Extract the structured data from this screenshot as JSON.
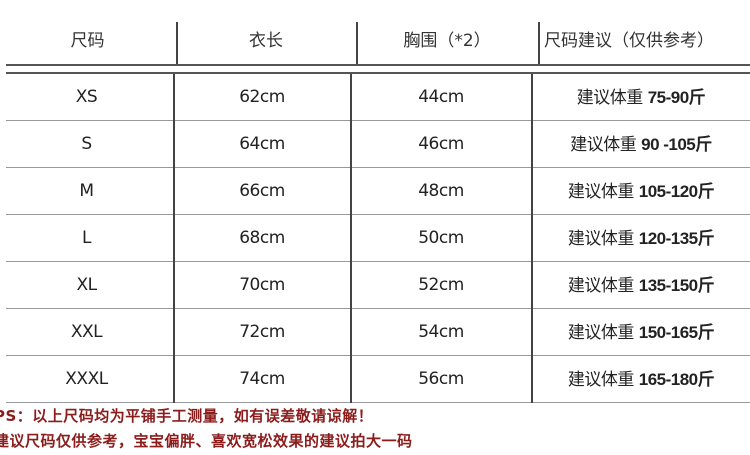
{
  "headers": [
    "尺码",
    "衣长",
    "胸围（*2）",
    "尺码建议（仅供参考）"
  ],
  "rows": [
    {
      "size": "XS",
      "length": "62cm",
      "chest": "44cm",
      "rec_prefix": "建议体重",
      "rec_value": "75-90斤"
    },
    {
      "size": "S",
      "length": "64cm",
      "chest": "46cm",
      "rec_prefix": "建议体重",
      "rec_value": "90 -105斤"
    },
    {
      "size": "M",
      "length": "66cm",
      "chest": "48cm",
      "rec_prefix": "建议体重",
      "rec_value": "105-120斤"
    },
    {
      "size": "L",
      "length": "68cm",
      "chest": "50cm",
      "rec_prefix": "建议体重",
      "rec_value": "120-135斤"
    },
    {
      "size": "XL",
      "length": "70cm",
      "chest": "52cm",
      "rec_prefix": "建议体重",
      "rec_value": "135-150斤"
    },
    {
      "size": "XXL",
      "length": "72cm",
      "chest": "54cm",
      "rec_prefix": "建议体重",
      "rec_value": "150-165斤"
    },
    {
      "size": "XXXL",
      "length": "74cm",
      "chest": "56cm",
      "rec_prefix": "建议体重",
      "rec_value": "165-180斤"
    }
  ],
  "notes": [
    "PS：以上尺码均为平铺手工测量，如有误差敬请谅解！",
    "建议尺码仅供参考，宝宝偏胖、喜欢宽松效果的建议拍大一码"
  ],
  "note_color": "#8b1c1c"
}
